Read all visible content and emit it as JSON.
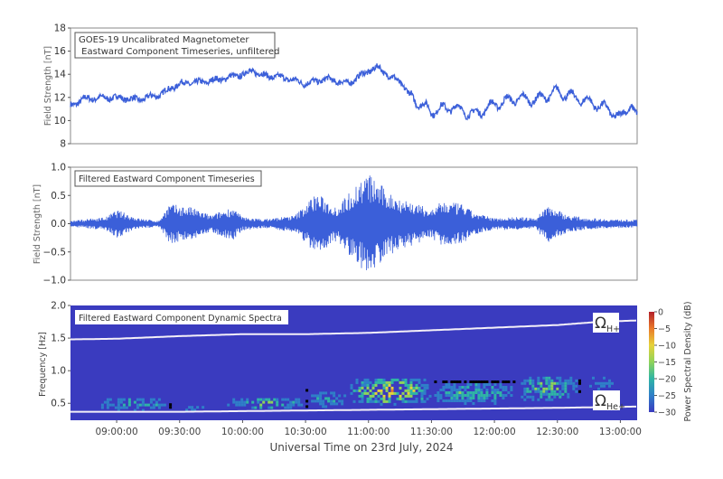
{
  "chart_data": [
    {
      "type": "line",
      "title": "GOES-19 Uncalibrated Magnetometer\n Eastward Component Timeseries, unfiltered",
      "ylabel": "Field Strength [nT]",
      "ylim": [
        8,
        18
      ],
      "yticks": [
        "8",
        "10",
        "12",
        "14",
        "16",
        "18"
      ],
      "xlim": [
        "08:38",
        "13:08"
      ],
      "color": "#3b5fd9",
      "series": [
        {
          "x": [
            "08:38",
            "08:45",
            "09:00",
            "09:10",
            "09:20",
            "09:30",
            "09:40",
            "09:50",
            "10:00",
            "10:05",
            "10:10",
            "10:20",
            "10:30",
            "10:40",
            "10:50",
            "11:00",
            "11:05",
            "11:10",
            "11:15",
            "11:20",
            "11:25",
            "11:30",
            "11:40",
            "11:50",
            "12:00",
            "12:10",
            "12:20",
            "12:30",
            "12:40",
            "12:50",
            "12:55",
            "13:00",
            "13:05",
            "13:08"
          ],
          "y": [
            11.3,
            11.9,
            12.0,
            11.8,
            12.2,
            13.2,
            13.3,
            13.6,
            14.0,
            14.3,
            13.9,
            13.7,
            13.2,
            13.6,
            13.2,
            14.3,
            14.6,
            13.8,
            13.4,
            12.1,
            11.4,
            10.8,
            11.2,
            10.5,
            11.4,
            11.9,
            11.8,
            12.5,
            11.9,
            11.3,
            10.9,
            10.2,
            11.5,
            10.2
          ]
        }
      ]
    },
    {
      "type": "line",
      "title": "Filtered Eastward Component Timeseries",
      "ylabel": "Field Strength [nT]",
      "ylim": [
        -1.0,
        1.0
      ],
      "yticks": [
        "−1.0",
        "−0.5",
        "0.0",
        "0.5",
        "1.0"
      ],
      "xlim": [
        "08:38",
        "13:08"
      ],
      "color": "#3b5fd9",
      "envelope": {
        "x": [
          "08:38",
          "08:45",
          "08:55",
          "09:00",
          "09:10",
          "09:20",
          "09:25",
          "09:35",
          "09:45",
          "09:55",
          "10:00",
          "10:10",
          "10:25",
          "10:35",
          "10:45",
          "10:55",
          "11:00",
          "11:10",
          "11:20",
          "11:30",
          "11:35",
          "11:45",
          "11:50",
          "12:00",
          "12:10",
          "12:20",
          "12:25",
          "12:35",
          "12:45",
          "12:55",
          "13:08"
        ],
        "amplitude": [
          0.05,
          0.08,
          0.12,
          0.25,
          0.1,
          0.05,
          0.35,
          0.3,
          0.15,
          0.3,
          0.12,
          0.08,
          0.15,
          0.55,
          0.3,
          0.75,
          0.9,
          0.55,
          0.4,
          0.25,
          0.4,
          0.35,
          0.2,
          0.1,
          0.12,
          0.1,
          0.35,
          0.15,
          0.1,
          0.08,
          0.07
        ]
      }
    },
    {
      "type": "heatmap",
      "title": "Filtered Eastward Component Dynamic Spectra",
      "ylabel": "Frequency [Hz]",
      "xlabel": "Universal Time on 23rd July, 2024",
      "ylim": [
        0.24,
        2.0
      ],
      "yticks": [
        "0.5",
        "1.0",
        "1.5",
        "2.0"
      ],
      "xlim": [
        "08:38",
        "13:08"
      ],
      "xticks": [
        "09:00:00",
        "09:30:00",
        "10:00:00",
        "10:30:00",
        "11:00:00",
        "11:30:00",
        "12:00:00",
        "12:30:00",
        "13:00:00"
      ],
      "colorbar": {
        "label": "Power Spectral Density (dB)",
        "range": [
          -30,
          0
        ],
        "ticks": [
          "0",
          "−5",
          "−10",
          "−15",
          "−20",
          "−25",
          "−30"
        ],
        "colors": [
          "#3a3bbf",
          "#2f7fc8",
          "#2fb5a5",
          "#8fd35a",
          "#e6d23a",
          "#ea7a2a",
          "#b3202a"
        ]
      },
      "power_regions": [
        {
          "t": [
            "08:50",
            "09:25"
          ],
          "f": [
            0.4,
            0.62
          ],
          "peak_db": -18
        },
        {
          "t": [
            "09:25",
            "09:45"
          ],
          "f": [
            0.4,
            0.5
          ],
          "peak_db": -24
        },
        {
          "t": [
            "09:50",
            "10:30"
          ],
          "f": [
            0.42,
            0.62
          ],
          "peak_db": -16
        },
        {
          "t": [
            "10:30",
            "10:50"
          ],
          "f": [
            0.45,
            0.72
          ],
          "peak_db": -20
        },
        {
          "t": [
            "10:50",
            "11:30"
          ],
          "f": [
            0.5,
            0.92
          ],
          "peak_db": -4
        },
        {
          "t": [
            "11:30",
            "12:10"
          ],
          "f": [
            0.5,
            0.85
          ],
          "peak_db": -16
        },
        {
          "t": [
            "12:10",
            "12:40"
          ],
          "f": [
            0.55,
            0.95
          ],
          "peak_db": -14
        },
        {
          "t": [
            "12:40",
            "13:00"
          ],
          "f": [
            0.7,
            0.95
          ],
          "peak_db": -24
        }
      ],
      "lines": [
        {
          "label": "Ω",
          "sub": "H+",
          "x": [
            "08:38",
            "09:00",
            "09:30",
            "10:00",
            "10:30",
            "11:00",
            "11:30",
            "12:00",
            "12:30",
            "12:50",
            "13:08"
          ],
          "y": [
            1.48,
            1.49,
            1.53,
            1.56,
            1.56,
            1.58,
            1.62,
            1.66,
            1.7,
            1.75,
            1.77
          ]
        },
        {
          "label": "Ω",
          "sub": "He+",
          "x": [
            "08:38",
            "09:30",
            "10:00",
            "10:30",
            "11:00",
            "11:30",
            "12:00",
            "12:30",
            "13:08"
          ],
          "y": [
            0.37,
            0.37,
            0.38,
            0.39,
            0.4,
            0.41,
            0.42,
            0.43,
            0.45
          ]
        }
      ]
    }
  ]
}
